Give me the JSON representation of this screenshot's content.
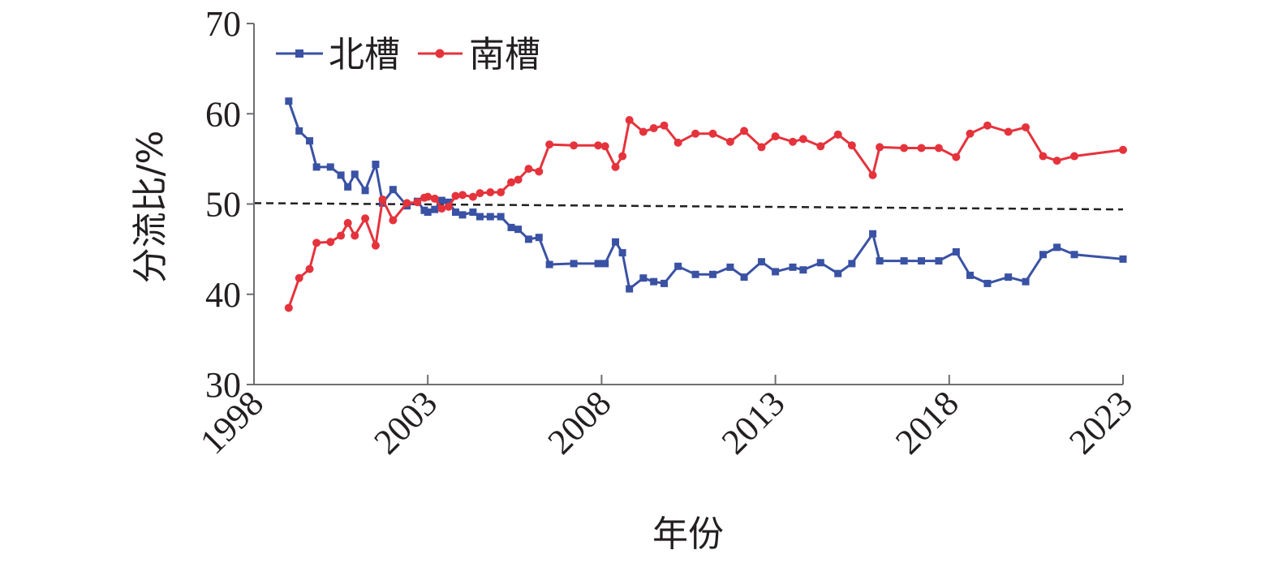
{
  "chart_data": {
    "type": "line",
    "xlabel": "年份",
    "ylabel": "分流比/%",
    "xlim": [
      1998,
      2023
    ],
    "ylim": [
      30,
      70
    ],
    "x_ticks": [
      "1998",
      "2003",
      "2008",
      "2013",
      "2018",
      "2023"
    ],
    "y_ticks": [
      "30",
      "40",
      "50",
      "60",
      "70"
    ],
    "legend_position": "top-left",
    "reference_line": {
      "x": [
        1998,
        2023
      ],
      "y": [
        50.1,
        49.4
      ],
      "style": "dashed",
      "color": "#231f20"
    },
    "series": [
      {
        "name": "北槽",
        "color": "#3a52a4",
        "marker": "square",
        "x": [
          1999.0,
          1999.3,
          1999.6,
          1999.8,
          2000.2,
          2000.5,
          2000.7,
          2000.9,
          2001.2,
          2001.5,
          2001.7,
          2002.0,
          2002.4,
          2002.7,
          2002.9,
          2003.0,
          2003.2,
          2003.4,
          2003.6,
          2003.8,
          2004.0,
          2004.3,
          2004.5,
          2004.8,
          2005.1,
          2005.4,
          2005.6,
          2005.9,
          2006.2,
          2006.5,
          2007.2,
          2007.9,
          2008.1,
          2008.4,
          2008.6,
          2008.8,
          2009.2,
          2009.5,
          2009.8,
          2010.2,
          2010.7,
          2011.2,
          2011.7,
          2012.1,
          2012.6,
          2013.0,
          2013.5,
          2013.8,
          2014.3,
          2014.8,
          2015.2,
          2015.8,
          2016.0,
          2016.7,
          2017.2,
          2017.7,
          2018.2,
          2018.6,
          2019.1,
          2019.7,
          2020.2,
          2020.7,
          2021.1,
          2021.6,
          2023.0
        ],
        "y": [
          61.4,
          58.1,
          57.0,
          54.1,
          54.1,
          53.2,
          51.9,
          53.3,
          51.5,
          54.4,
          50.1,
          51.6,
          49.8,
          50.3,
          49.3,
          49.1,
          49.4,
          50.4,
          50.2,
          49.1,
          48.8,
          49.1,
          48.6,
          48.6,
          48.6,
          47.4,
          47.2,
          46.1,
          46.3,
          43.3,
          43.4,
          43.4,
          43.4,
          45.8,
          44.6,
          40.6,
          41.8,
          41.4,
          41.2,
          43.1,
          42.2,
          42.2,
          43.0,
          41.9,
          43.6,
          42.5,
          43.0,
          42.7,
          43.5,
          42.3,
          43.4,
          46.7,
          43.7,
          43.7,
          43.7,
          43.7,
          44.7,
          42.1,
          41.2,
          41.9,
          41.4,
          44.4,
          45.2,
          44.4,
          43.9
        ]
      },
      {
        "name": "南槽",
        "color": "#e5333c",
        "marker": "circle",
        "x": [
          1999.0,
          1999.3,
          1999.6,
          1999.8,
          2000.2,
          2000.5,
          2000.7,
          2000.9,
          2001.2,
          2001.5,
          2001.7,
          2002.0,
          2002.4,
          2002.7,
          2002.9,
          2003.0,
          2003.2,
          2003.4,
          2003.6,
          2003.8,
          2004.0,
          2004.3,
          2004.5,
          2004.8,
          2005.1,
          2005.4,
          2005.6,
          2005.9,
          2006.2,
          2006.5,
          2007.2,
          2007.9,
          2008.1,
          2008.4,
          2008.6,
          2008.8,
          2009.2,
          2009.5,
          2009.8,
          2010.2,
          2010.7,
          2011.2,
          2011.7,
          2012.1,
          2012.6,
          2013.0,
          2013.5,
          2013.8,
          2014.3,
          2014.8,
          2015.2,
          2015.8,
          2016.0,
          2016.7,
          2017.2,
          2017.7,
          2018.2,
          2018.6,
          2019.1,
          2019.7,
          2020.2,
          2020.7,
          2021.1,
          2021.6,
          2023.0
        ],
        "y": [
          38.5,
          41.8,
          42.8,
          45.7,
          45.8,
          46.5,
          47.9,
          46.5,
          48.4,
          45.4,
          50.5,
          48.2,
          50.1,
          50.2,
          50.7,
          50.8,
          50.6,
          49.5,
          49.7,
          50.9,
          51.0,
          50.8,
          51.2,
          51.3,
          51.3,
          52.4,
          52.7,
          53.9,
          53.6,
          56.6,
          56.5,
          56.5,
          56.4,
          54.1,
          55.3,
          59.3,
          58.0,
          58.4,
          58.7,
          56.8,
          57.8,
          57.8,
          56.9,
          58.1,
          56.3,
          57.5,
          56.9,
          57.2,
          56.4,
          57.7,
          56.5,
          53.2,
          56.3,
          56.2,
          56.2,
          56.2,
          55.2,
          57.8,
          58.7,
          58.0,
          58.5,
          55.3,
          54.8,
          55.3,
          56.0
        ]
      }
    ]
  }
}
